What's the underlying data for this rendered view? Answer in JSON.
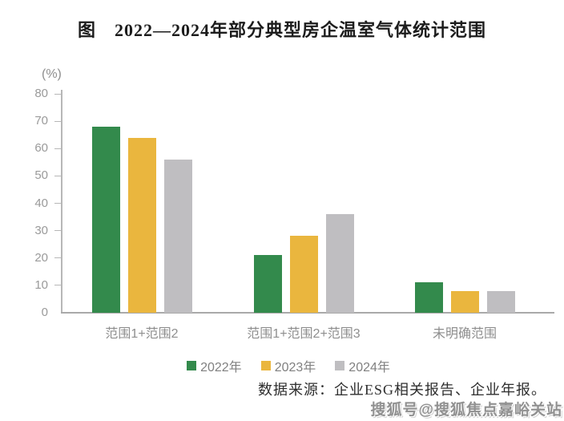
{
  "title": "图　2022—2024年部分典型房企温室气体统计范围",
  "chart_data": {
    "type": "bar",
    "title": "图　2022—2024年部分典型房企温室气体统计范围",
    "unit_label": "(%)",
    "xlabel": "",
    "ylabel": "(%)",
    "ylim": [
      0,
      80
    ],
    "yticks": [
      0,
      10,
      20,
      30,
      40,
      50,
      60,
      70,
      80
    ],
    "grid": false,
    "legend_position": "bottom",
    "categories": [
      "范围1+范围2",
      "范围1+范围2+范围3",
      "未明确范围"
    ],
    "series": [
      {
        "name": "2022年",
        "color": "#338a4c",
        "values": [
          68,
          21,
          11
        ]
      },
      {
        "name": "2023年",
        "color": "#eab63e",
        "values": [
          64,
          28,
          8
        ]
      },
      {
        "name": "2024年",
        "color": "#bfbec1",
        "values": [
          56,
          36,
          8
        ]
      }
    ]
  },
  "source_note": "数据来源：企业ESG相关报告、企业年报。",
  "watermark": "搜狐号@搜狐焦点嘉峪关站",
  "colors": {
    "series_2022": "#338a4c",
    "series_2023": "#eab63e",
    "series_2024": "#bfbec1",
    "axis": "#b7b7b7",
    "axis_text": "#9a9a9a",
    "title_text": "#1c1c1c"
  }
}
